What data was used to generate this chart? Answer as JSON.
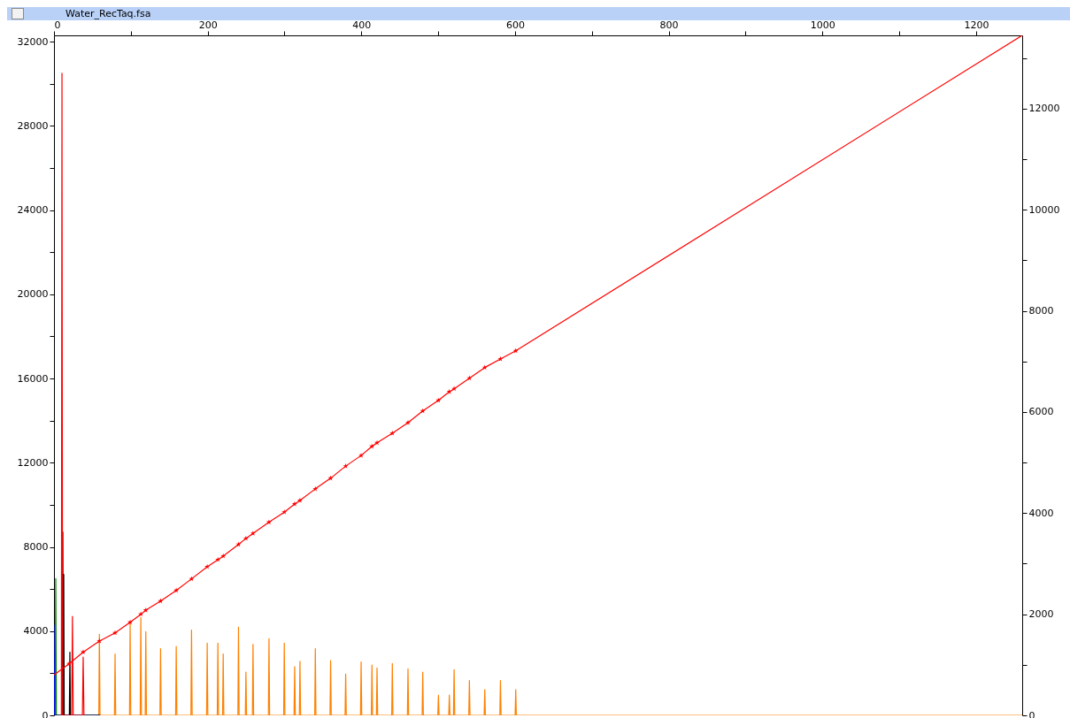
{
  "chart_data": {
    "type": "line",
    "title": "Water_RecTaq.fsa",
    "xlim": [
      0,
      1260
    ],
    "xticks": [
      0,
      {
        "value": 100,
        "label": null
      },
      200,
      {
        "value": 300,
        "label": null
      },
      400,
      {
        "value": 500,
        "label": null
      },
      600,
      {
        "value": 700,
        "label": null
      },
      800,
      {
        "value": 900,
        "label": null
      },
      1000,
      {
        "value": 1100,
        "label": null
      },
      1200
    ],
    "ylim": [
      0,
      32300
    ],
    "yticks": [
      0,
      {
        "value": 2000,
        "label": null
      },
      4000,
      {
        "value": 6000,
        "label": null
      },
      8000,
      {
        "value": 10000,
        "label": null
      },
      12000,
      {
        "value": 14000,
        "label": null
      },
      16000,
      {
        "value": 18000,
        "label": null
      },
      20000,
      {
        "value": 22000,
        "label": null
      },
      24000,
      {
        "value": 26000,
        "label": null
      },
      28000,
      {
        "value": 30000,
        "label": null
      },
      32000
    ],
    "y2lim": [
      0,
      13450
    ],
    "y2ticks": [
      0,
      {
        "value": 1000,
        "label": null
      },
      2000,
      {
        "value": 3000,
        "label": null
      },
      4000,
      {
        "value": 5000,
        "label": null
      },
      6000,
      {
        "value": 7000,
        "label": null
      },
      8000,
      {
        "value": 9000,
        "label": null
      },
      10000,
      {
        "value": 11000,
        "label": null
      },
      12000,
      {
        "value": 13000,
        "label": null
      }
    ],
    "series": [
      {
        "color": "#ff8000",
        "x": [
          40,
          58.3,
          59.1,
          59.9,
          78.7,
          79.5,
          80.3,
          98.3,
          99.1,
          99.9,
          112.2,
          113,
          113.8,
          118.7,
          119.5,
          120.3,
          137.9,
          138.7,
          139.5,
          158.3,
          159.1,
          159.9,
          178.2,
          179,
          179.8,
          198.6,
          199.4,
          200.2,
          212.5,
          213.3,
          214.1,
          219.4,
          220.2,
          221,
          239.3,
          240.1,
          240.9,
          249,
          249.8,
          250.6,
          258.2,
          259,
          259.8,
          279,
          279.8,
          280.6,
          298.9,
          299.7,
          300.5,
          312.4,
          313.2,
          314,
          319.3,
          320.1,
          320.9,
          339.3,
          340.1,
          340.9,
          359.2,
          360,
          360.8,
          378.8,
          379.6,
          380.4,
          398.9,
          399.7,
          400.5,
          413,
          413.8,
          414.6,
          419.6,
          420.4,
          421.2,
          439.5,
          440.3,
          441.1,
          459.9,
          460.7,
          461.5,
          479.1,
          479.9,
          480.7,
          499.5,
          500.3,
          501.1,
          513.7,
          514.5,
          515.3,
          519.9,
          520.7,
          521.5,
          539.8,
          540.6,
          541.4,
          559.8,
          560.6,
          561.4,
          580.2,
          581,
          581.8,
          600.1,
          600.9,
          601.7,
          1260
        ],
        "values": [
          0,
          0,
          3850,
          0,
          0,
          2920,
          0,
          0,
          4450,
          0,
          0,
          4650,
          0,
          0,
          3980,
          0,
          0,
          3170,
          0,
          0,
          3270,
          0,
          0,
          4050,
          0,
          0,
          3430,
          0,
          0,
          3430,
          0,
          0,
          2920,
          0,
          0,
          4190,
          0,
          0,
          2050,
          0,
          0,
          3380,
          0,
          0,
          3640,
          0,
          0,
          3430,
          0,
          0,
          2320,
          0,
          0,
          2570,
          0,
          0,
          3170,
          0,
          0,
          2600,
          0,
          0,
          1960,
          0,
          0,
          2540,
          0,
          0,
          2390,
          0,
          0,
          2250,
          0,
          0,
          2460,
          0,
          0,
          2210,
          0,
          0,
          2050,
          0,
          0,
          950,
          0,
          0,
          960,
          0,
          0,
          2170,
          0,
          0,
          1660,
          0,
          0,
          1220,
          0,
          0,
          1660,
          0,
          0,
          1220,
          0,
          0
        ]
      },
      {
        "color": "#008000",
        "x": [
          0,
          1.5,
          2.3,
          3.1,
          60
        ],
        "values": [
          0,
          0,
          6500,
          0,
          0
        ]
      },
      {
        "color": "#0000ff",
        "x": [
          0,
          0.8,
          60
        ],
        "values": [
          4300,
          0,
          0
        ]
      },
      {
        "color": "#000000",
        "x": [
          0,
          10.7,
          11.5,
          12.1,
          12.7,
          13.3,
          20,
          20.7,
          21.4,
          60
        ],
        "values": [
          0,
          0,
          8700,
          0,
          6700,
          0,
          0,
          3000,
          0,
          0
        ]
      },
      {
        "color": "#ff0000",
        "x": [
          9.6,
          10.4,
          11.2,
          23,
          24,
          25,
          37,
          38,
          39
        ],
        "values": [
          0,
          30500,
          0,
          0,
          4700,
          0,
          0,
          2770,
          0
        ]
      },
      {
        "color": "#ff0000",
        "axis": "y2",
        "x": [
          0,
          19.6,
          38,
          59.1,
          79.5,
          99.1,
          113,
          119.5,
          138.7,
          159.1,
          179,
          199.4,
          213.3,
          220.2,
          240.1,
          249.8,
          259,
          279.8,
          299.7,
          313.2,
          320.1,
          340.1,
          360,
          379.6,
          399.7,
          413.8,
          420.4,
          440.3,
          460.7,
          479.9,
          500.3,
          514.5,
          520.7,
          540.6,
          560.6,
          581,
          600.9,
          1260
        ],
        "values": [
          800,
          1020,
          1250,
          1470,
          1630,
          1840,
          2000,
          2080,
          2260,
          2470,
          2700,
          2940,
          3080,
          3150,
          3380,
          3500,
          3600,
          3820,
          4020,
          4180,
          4250,
          4480,
          4690,
          4930,
          5140,
          5320,
          5390,
          5580,
          5790,
          6020,
          6230,
          6400,
          6460,
          6670,
          6880,
          7050,
          7210,
          13450
        ]
      },
      {
        "type": "scatter",
        "marker": "star",
        "color": "#ff0000",
        "axis": "y2",
        "x": [
          19.6,
          38,
          59.1,
          79.5,
          99.1,
          113,
          119.5,
          138.7,
          159.1,
          179,
          199.4,
          213.3,
          220.2,
          240.1,
          249.8,
          259,
          279.8,
          299.7,
          313.2,
          320.1,
          340.1,
          360,
          379.6,
          399.7,
          413.8,
          420.4,
          440.3,
          460.7,
          479.9,
          500.3,
          514.5,
          520.7,
          540.6,
          560.6,
          581,
          600.9
        ],
        "values": [
          1020,
          1250,
          1470,
          1630,
          1840,
          2000,
          2080,
          2260,
          2470,
          2700,
          2940,
          3080,
          3150,
          3380,
          3500,
          3600,
          3820,
          4020,
          4180,
          4250,
          4480,
          4690,
          4930,
          5140,
          5320,
          5390,
          5580,
          5790,
          6020,
          6230,
          6400,
          6460,
          6670,
          6880,
          7050,
          7210
        ]
      }
    ]
  }
}
